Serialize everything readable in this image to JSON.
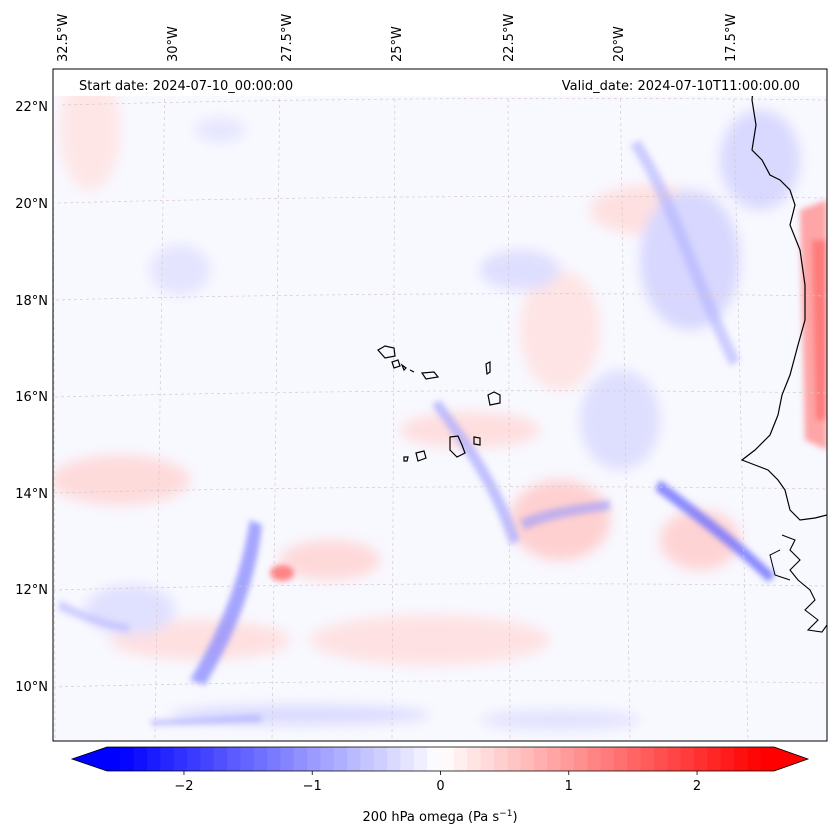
{
  "map": {
    "start_date_label": "Start date: 2024-07-10_00:00:00",
    "valid_date_label": "Valid_date: 2024-07-10T11:00:00.00",
    "lon_labels": [
      {
        "text": "32.5°W",
        "lon": -32.5
      },
      {
        "text": "30°W",
        "lon": -30
      },
      {
        "text": "27.5°W",
        "lon": -27.5
      },
      {
        "text": "25°W",
        "lon": -25
      },
      {
        "text": "22.5°W",
        "lon": -22.5
      },
      {
        "text": "20°W",
        "lon": -20
      },
      {
        "text": "17.5°W",
        "lon": -17.5
      }
    ],
    "lat_labels": [
      {
        "text": "22°N",
        "lat": 22
      },
      {
        "text": "20°N",
        "lat": 20
      },
      {
        "text": "18°N",
        "lat": 18
      },
      {
        "text": "16°N",
        "lat": 16
      },
      {
        "text": "14°N",
        "lat": 14
      },
      {
        "text": "12°N",
        "lat": 12
      },
      {
        "text": "10°N",
        "lat": 10
      }
    ],
    "field": "200 hPa omega",
    "region": "Cabo Verde and West African coast"
  },
  "colorbar": {
    "label_main": "200 hPa omega (Pa s",
    "label_sup": "−1",
    "label_close": ")",
    "vmin": -2.6,
    "vmax": 2.6,
    "ticks": [
      {
        "text": "−2",
        "value": -2
      },
      {
        "text": "−1",
        "value": -1
      },
      {
        "text": "0",
        "value": 0
      },
      {
        "text": "1",
        "value": 1
      },
      {
        "text": "2",
        "value": 2
      }
    ],
    "colors": {
      "negative": "#0000ff",
      "zero": "#ffffff",
      "positive": "#ff0000"
    }
  }
}
